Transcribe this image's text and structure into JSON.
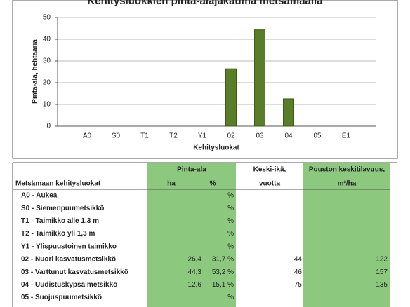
{
  "chart_data": {
    "type": "bar",
    "title": "Kehitysluokkien pinta-alajakauma metsämaalla",
    "categories": [
      "A0",
      "S0",
      "T1",
      "T2",
      "Y1",
      "02",
      "03",
      "04",
      "05",
      "E1"
    ],
    "values": [
      0,
      0,
      0,
      0,
      0,
      26.4,
      44.3,
      12.6,
      0,
      0
    ],
    "color": "#5a7d2a",
    "ylim": [
      0,
      50
    ],
    "yticks": [
      0,
      10,
      20,
      30,
      40,
      50
    ],
    "grid": true,
    "xlabel": "Kehitysluokat",
    "ylabel": "Pinta-ala, hehtaaria"
  },
  "table": {
    "header": {
      "name": "Metsämaan kehitysluokat",
      "area": "Pinta-ala",
      "ha": "ha",
      "pct": "%",
      "age": "Keski-ikä,",
      "age_unit": "vuotta",
      "volume": "Puuston keskitilavuus,",
      "volume_unit": "m³/ha"
    },
    "rows": [
      {
        "name": "A0 - Aukea",
        "pct": "%"
      },
      {
        "name": "S0 - Siemenpuumetsikkö",
        "pct": "%"
      },
      {
        "name": "T1 - Taimikko alle 1,3 m",
        "pct": "%"
      },
      {
        "name": "T2 - Taimikko yli 1,3 m",
        "pct": "%"
      },
      {
        "name": "Y1 - Ylispuustoinen taimikko",
        "pct": "%"
      },
      {
        "name": "02 - Nuori kasvatusmetsikkö",
        "ha": "26,4",
        "pct": "31,7 %",
        "age": "44",
        "volume": "122"
      },
      {
        "name": "03 - Varttunut kasvatusmetsikkö",
        "ha": "44,3",
        "pct": "53,2 %",
        "age": "46",
        "volume": "157"
      },
      {
        "name": "04 - Uudistuskypsä metsikkö",
        "ha": "12,6",
        "pct": "15,1 %",
        "age": "75",
        "volume": "135"
      },
      {
        "name": "05 - Suojuspuumetsikkö",
        "pct": "%"
      }
    ]
  }
}
